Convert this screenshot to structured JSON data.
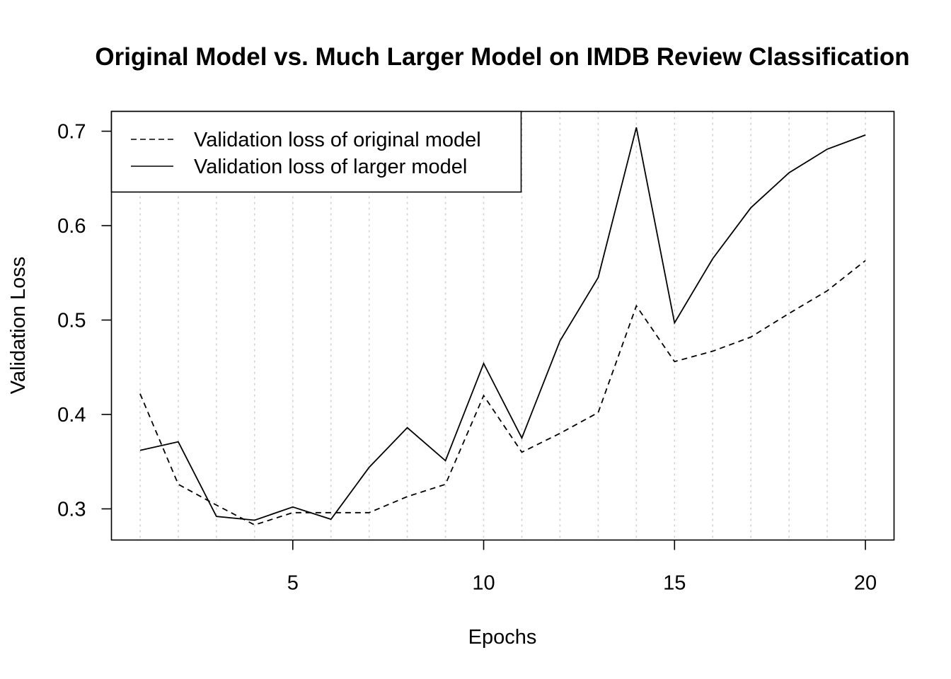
{
  "chart_data": {
    "type": "line",
    "title": "Original Model vs. Much Larger Model on IMDB Review Classification",
    "xlabel": "Epochs",
    "ylabel": "Validation Loss",
    "x": [
      1,
      2,
      3,
      4,
      5,
      6,
      7,
      8,
      9,
      10,
      11,
      12,
      13,
      14,
      15,
      16,
      17,
      18,
      19,
      20
    ],
    "xlim": [
      0.25,
      20.75
    ],
    "ylim": [
      0.267,
      0.721
    ],
    "xticks": [
      5,
      10,
      15,
      20
    ],
    "xtick_labels": [
      "5",
      "10",
      "15",
      "20"
    ],
    "yticks": [
      0.3,
      0.4,
      0.5,
      0.6,
      0.7
    ],
    "ytick_labels": [
      "0.3",
      "0.4",
      "0.5",
      "0.6",
      "0.7"
    ],
    "grid": "vertical dotted at each epoch",
    "legend_position": "top-left",
    "series": [
      {
        "name": "Validation loss of original model",
        "style": "dashed",
        "color": "#000000",
        "values": [
          0.422,
          0.326,
          0.304,
          0.283,
          0.296,
          0.296,
          0.296,
          0.313,
          0.326,
          0.42,
          0.36,
          0.38,
          0.402,
          0.515,
          0.456,
          0.467,
          0.482,
          0.507,
          0.531,
          0.563
        ]
      },
      {
        "name": "Validation loss of larger model",
        "style": "solid",
        "color": "#000000",
        "values": [
          0.362,
          0.371,
          0.292,
          0.288,
          0.302,
          0.289,
          0.344,
          0.386,
          0.351,
          0.454,
          0.375,
          0.478,
          0.545,
          0.704,
          0.497,
          0.565,
          0.619,
          0.656,
          0.681,
          0.696
        ]
      }
    ]
  }
}
